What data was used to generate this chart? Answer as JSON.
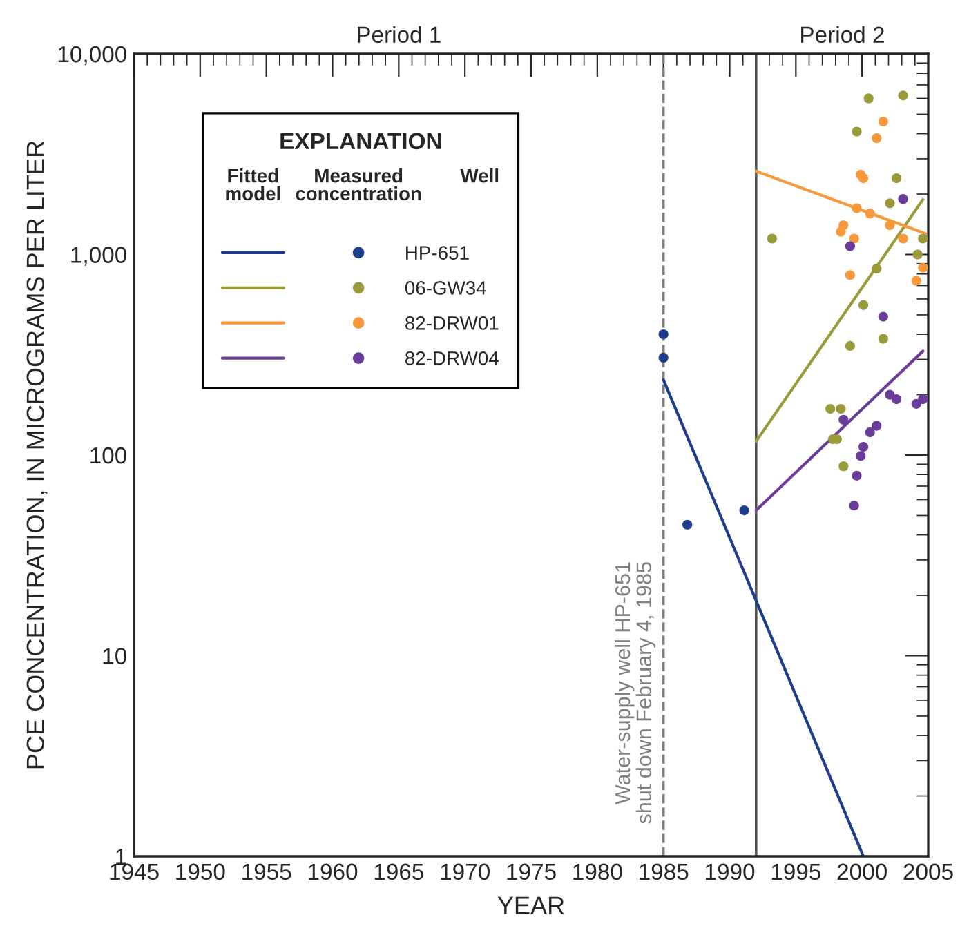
{
  "chart_data": {
    "type": "scatter",
    "xlabel": "YEAR",
    "ylabel": "PCE CONCENTRATION, IN MICROGRAMS PER LITER",
    "legend_title": "EXPLANATION",
    "annotations": [
      "Period 1",
      "Period 2",
      "Fitted\nmodel",
      "Measured\nconcentration",
      "Well"
    ],
    "series": [
      {
        "name": "HP-651",
        "color": "#1f3d8f",
        "x": [
          1985,
          1985,
          1986.8,
          1991.1
        ],
        "values": [
          400,
          306,
          45,
          53
        ]
      },
      {
        "type": "line",
        "marker": "none",
        "color": "#1f3d8f",
        "x": [
          1985,
          2000.1
        ],
        "values": [
          237,
          1
        ]
      },
      {
        "name": "06-GW34",
        "color": "#9a9a3a",
        "x": [
          2000.5,
          2003.1,
          1999.6,
          2002.6,
          2002.1,
          1993.2,
          2004.6,
          2004.2,
          2001.1,
          2000.1,
          2001.6,
          1999.1,
          1997.6,
          1998.4,
          1997.8,
          1998.1,
          1998.6
        ],
        "values": [
          6000,
          6200,
          4100,
          2400,
          1800,
          1200,
          1200,
          1000,
          850,
          560,
          380,
          350,
          170,
          170,
          120,
          120,
          88
        ]
      },
      {
        "type": "line",
        "marker": "none",
        "color": "#9a9a3a",
        "x": [
          1992,
          2004.6
        ],
        "values": [
          117,
          1880
        ]
      },
      {
        "name": "82-DRW01",
        "color": "#f7993a",
        "x": [
          2001.6,
          2001.1,
          1999.9,
          2000.1,
          1999.6,
          2000.6,
          1998.6,
          1998.4,
          1999.4,
          2002.1,
          2003.1,
          2004.6,
          2004.1,
          1999.1
        ],
        "values": [
          4600,
          3800,
          2500,
          2400,
          1700,
          1600,
          1400,
          1300,
          1200,
          1400,
          1200,
          860,
          740,
          790
        ]
      },
      {
        "type": "line",
        "marker": "none",
        "color": "#f7993a",
        "x": [
          1992,
          2004.8
        ],
        "values": [
          2600,
          1270
        ]
      },
      {
        "name": "82-DRW04",
        "color": "#6a3d9a",
        "x": [
          2003.1,
          1999.1,
          2001.6,
          2002.1,
          2002.6,
          2004.1,
          2004.6,
          1998.6,
          2001.1,
          2000.6,
          2000.1,
          1999.9,
          1999.6,
          1999.4
        ],
        "values": [
          1890,
          1100,
          490,
          200,
          190,
          180,
          190,
          150,
          140,
          130,
          110,
          99,
          79,
          56
        ]
      },
      {
        "type": "line",
        "marker": "none",
        "color": "#6a3d9a",
        "x": [
          1992,
          2004.6
        ],
        "values": [
          53,
          330
        ]
      }
    ],
    "ref_lines": [
      {
        "axis": "x",
        "value": 1985,
        "label": "Water-supply well HP-651\nshut down February 4, 1985",
        "color": "#808080",
        "line_style": "dashed"
      },
      {
        "axis": "x",
        "value": 1992,
        "color": "#555555",
        "line_style": "solid"
      }
    ],
    "xlim": [
      1945,
      2005
    ],
    "xticks": [
      1945,
      1950,
      1955,
      1960,
      1965,
      1970,
      1975,
      1980,
      1985,
      1990,
      1995,
      2000,
      2005
    ],
    "ylim": [
      1,
      10000
    ],
    "yticks": [
      1,
      10,
      100,
      {
        "value": 1000,
        "label": "1,000"
      },
      {
        "value": 10000,
        "label": "10,000"
      }
    ],
    "log": true,
    "grid": false,
    "legend": "top left",
    "marker": "circle",
    "line_style": "solid"
  }
}
